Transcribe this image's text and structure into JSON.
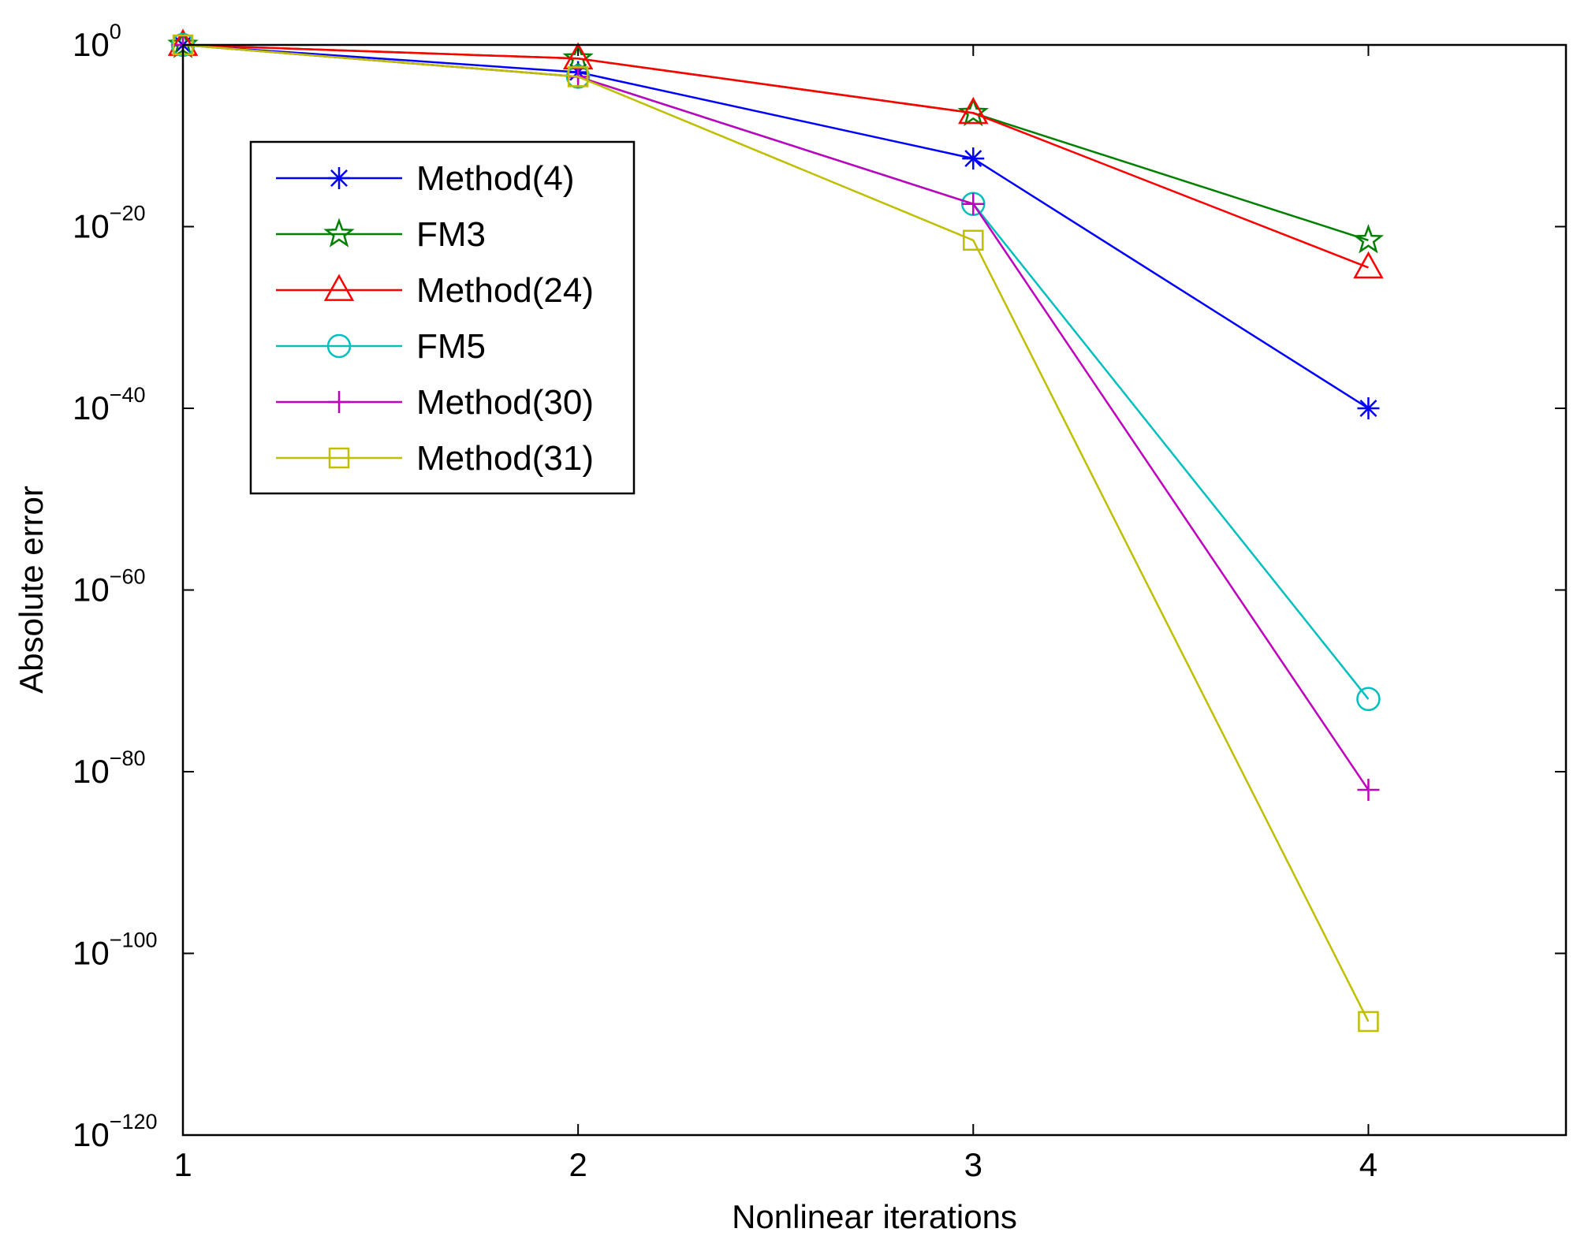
{
  "chart_data": {
    "type": "line",
    "title": "",
    "xlabel": "Nonlinear iterations",
    "ylabel": "Absolute error",
    "yscale": "log",
    "x": [
      1,
      2,
      3,
      4
    ],
    "xlim": [
      1,
      4.5
    ],
    "ylim_exponent": [
      -120,
      0
    ],
    "x_ticks": [
      {
        "value": 1,
        "label": "1"
      },
      {
        "value": 2,
        "label": "2"
      },
      {
        "value": 3,
        "label": "3"
      },
      {
        "value": 4,
        "label": "4"
      }
    ],
    "y_ticks": [
      {
        "exponent": 0,
        "base": "10",
        "exp_label": "0"
      },
      {
        "exponent": -20,
        "base": "10",
        "exp_label": "−20"
      },
      {
        "exponent": -40,
        "base": "10",
        "exp_label": "−40"
      },
      {
        "exponent": -60,
        "base": "10",
        "exp_label": "−60"
      },
      {
        "exponent": -80,
        "base": "10",
        "exp_label": "−80"
      },
      {
        "exponent": -100,
        "base": "10",
        "exp_label": "−100"
      },
      {
        "exponent": -120,
        "base": "10",
        "exp_label": "−120"
      }
    ],
    "grid": false,
    "legend_position": "top-left",
    "series": [
      {
        "name": "Method(4)",
        "color": "#0000ff",
        "marker": "asterisk",
        "log10_values": [
          0,
          -3,
          -12.5,
          -40
        ]
      },
      {
        "name": "FM3",
        "color": "#008000",
        "marker": "star",
        "log10_values": [
          0,
          -1.5,
          -7.5,
          -21.5
        ]
      },
      {
        "name": "Method(24)",
        "color": "#ff0000",
        "marker": "triangle",
        "log10_values": [
          0,
          -1.5,
          -7.5,
          -24.5
        ]
      },
      {
        "name": "FM5",
        "color": "#00bfbf",
        "marker": "circle",
        "log10_values": [
          0,
          -3.5,
          -17.5,
          -72
        ]
      },
      {
        "name": "Method(30)",
        "color": "#bf00bf",
        "marker": "plus",
        "log10_values": [
          0,
          -3.5,
          -17.5,
          -82
        ]
      },
      {
        "name": "Method(31)",
        "color": "#bfbf00",
        "marker": "square",
        "log10_values": [
          0,
          -3.5,
          -21.5,
          -107.5
        ]
      }
    ]
  }
}
